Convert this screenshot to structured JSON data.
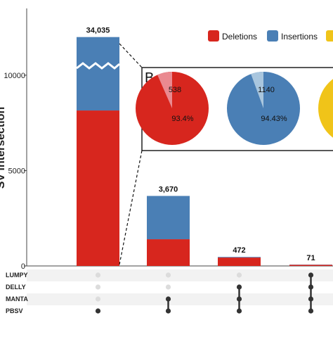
{
  "chart_data": {
    "type": "bar",
    "ylabel": "SV intersection",
    "ylim": [
      0,
      13500
    ],
    "y_ticks": [
      0,
      5000,
      10000
    ],
    "y_tick_labels": [
      "0",
      "5000",
      "10000"
    ],
    "axis_break": true,
    "categories": [
      "PBSV",
      "MANTA+PBSV",
      "DELLY+MANTA+PBSV",
      "LUMPY+DELLY+MANTA+PBSV"
    ],
    "totals": [
      34035,
      3670,
      472,
      71
    ],
    "total_labels": [
      "34,035",
      "3,670",
      "472",
      "71"
    ],
    "series": [
      {
        "name": "Deletions",
        "color": "#d7261e",
        "values": [
          8150,
          1400,
          440,
          60
        ]
      },
      {
        "name": "Insertions",
        "color": "#4a7fb5",
        "values": [
          3850,
          2270,
          32,
          11
        ]
      }
    ],
    "bar_tops_displayed": [
      12000,
      3670,
      472,
      71
    ],
    "set_labels": [
      "LUMPY",
      "DELLY",
      "MANTA",
      "PBSV"
    ],
    "sets_per_bar": [
      [
        "PBSV"
      ],
      [
        "MANTA",
        "PBSV"
      ],
      [
        "DELLY",
        "MANTA",
        "PBSV"
      ],
      [
        "LUMPY",
        "DELLY",
        "MANTA",
        "PBSV"
      ]
    ],
    "legend": [
      "Deletions",
      "Insertions",
      ""
    ],
    "legend_colors": [
      "#d7261e",
      "#4a7fb5",
      "#f0c419"
    ],
    "inset": {
      "panel_label": "B",
      "pies": [
        {
          "color": "#d7261e",
          "light": "#ea8a90",
          "minor_share": 6.6,
          "minor_label": "538",
          "major_label": "93.4%"
        },
        {
          "color": "#4a7fb5",
          "light": "#a9c6de",
          "minor_share": 5.57,
          "minor_label": "1140",
          "major_label": "94.43%"
        },
        {
          "color": "#f0c419",
          "light": "#f7e08a",
          "minor_share": 5,
          "minor_label": "",
          "major_label": ""
        }
      ]
    }
  }
}
